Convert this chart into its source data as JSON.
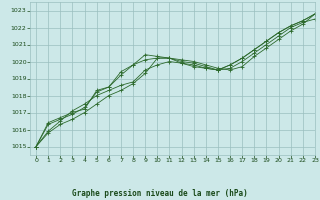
{
  "title": "Graphe pression niveau de la mer (hPa)",
  "background_color": "#cce8e8",
  "grid_color": "#9bbfbf",
  "line_color": "#2d6a2d",
  "text_color": "#1a4a1a",
  "xlim": [
    -0.5,
    23
  ],
  "ylim": [
    1014.5,
    1023.5
  ],
  "yticks": [
    1015,
    1016,
    1017,
    1018,
    1019,
    1020,
    1021,
    1022,
    1023
  ],
  "xticks": [
    0,
    1,
    2,
    3,
    4,
    5,
    6,
    7,
    8,
    9,
    10,
    11,
    12,
    13,
    14,
    15,
    16,
    17,
    18,
    19,
    20,
    21,
    22,
    23
  ],
  "series": [
    [
      1015.0,
      1015.8,
      1016.3,
      1016.6,
      1017.0,
      1017.5,
      1018.0,
      1018.3,
      1018.7,
      1019.3,
      1020.2,
      1020.2,
      1020.1,
      1020.0,
      1019.8,
      1019.6,
      1019.5,
      1019.7,
      1020.3,
      1020.8,
      1021.3,
      1021.8,
      1022.2,
      1022.8
    ],
    [
      1015.0,
      1015.9,
      1016.5,
      1017.1,
      1017.5,
      1018.0,
      1018.3,
      1018.6,
      1018.8,
      1019.5,
      1019.8,
      1020.0,
      1019.9,
      1019.7,
      1019.6,
      1019.5,
      1019.6,
      1020.0,
      1020.5,
      1021.0,
      1021.5,
      1022.0,
      1022.3,
      1022.5
    ],
    [
      1015.0,
      1016.3,
      1016.6,
      1016.9,
      1017.3,
      1018.2,
      1018.5,
      1019.2,
      1019.8,
      1020.4,
      1020.3,
      1020.2,
      1020.0,
      1019.9,
      1019.7,
      1019.5,
      1019.8,
      1020.2,
      1020.7,
      1021.2,
      1021.7,
      1022.1,
      1022.4,
      1022.8
    ],
    [
      1015.0,
      1016.4,
      1016.7,
      1017.0,
      1017.2,
      1018.3,
      1018.5,
      1019.4,
      1019.8,
      1020.1,
      1020.2,
      1020.2,
      1019.9,
      1019.8,
      1019.6,
      1019.5,
      1019.8,
      1020.2,
      1020.7,
      1021.2,
      1021.7,
      1022.1,
      1022.4,
      1022.8
    ]
  ]
}
